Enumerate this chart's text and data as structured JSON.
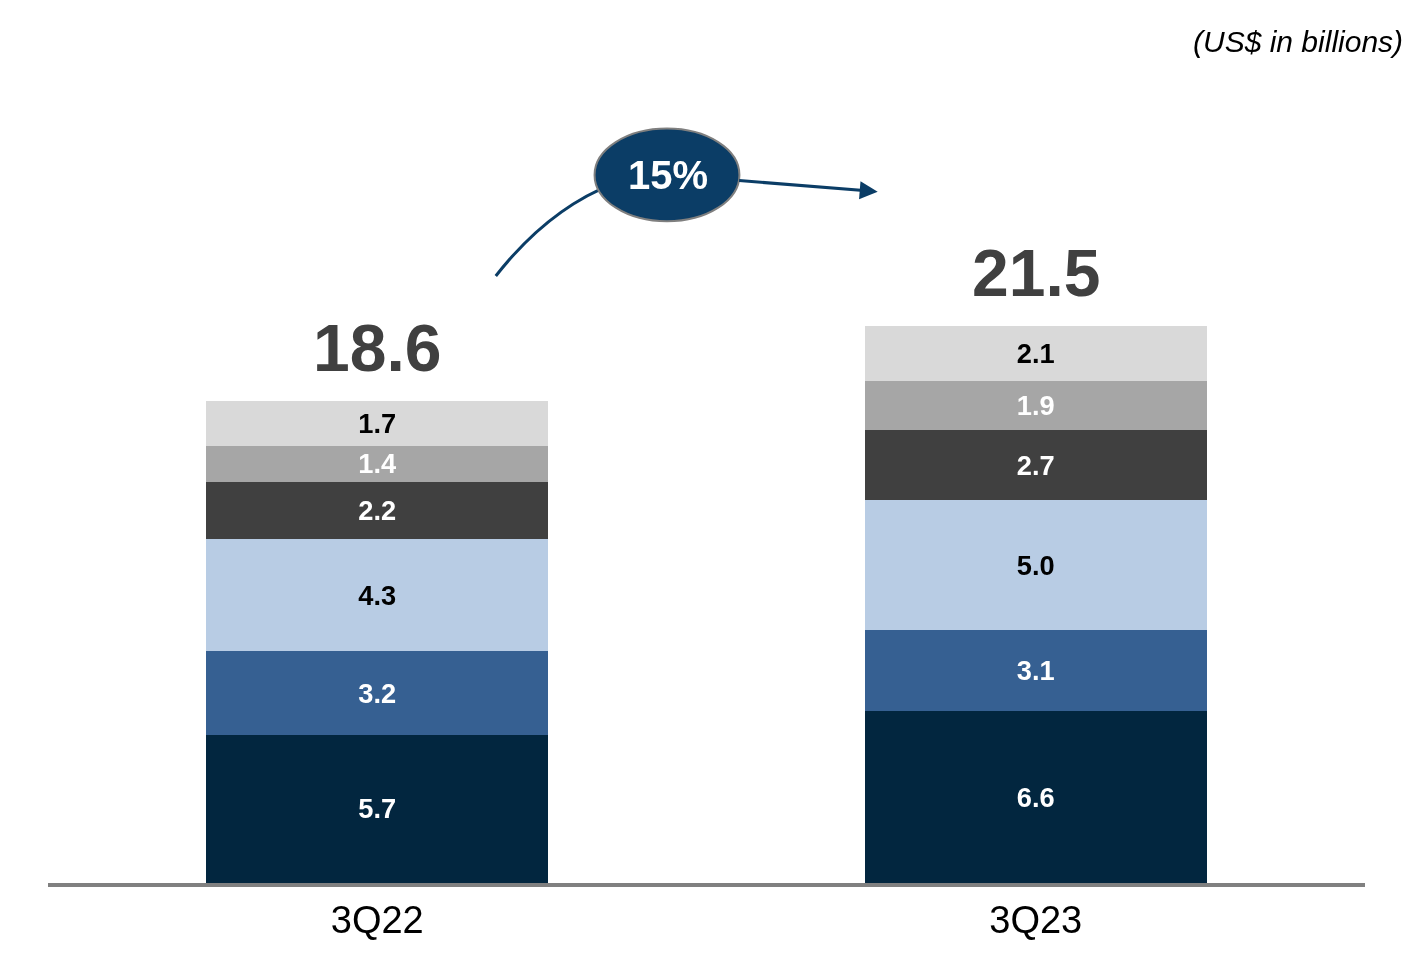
{
  "chart_data": {
    "type": "bar",
    "stacked": true,
    "categories": [
      "3Q22",
      "3Q23"
    ],
    "series": [
      {
        "color": "#02263f",
        "values": [
          5.7,
          6.6
        ],
        "value_labels": [
          "5.7",
          "6.6"
        ]
      },
      {
        "color": "#366092",
        "values": [
          3.2,
          3.1
        ],
        "value_labels": [
          "3.2",
          "3.1"
        ]
      },
      {
        "color": "#b8cce4",
        "values": [
          4.3,
          5.0
        ],
        "value_labels": [
          "4.3",
          "5.0"
        ]
      },
      {
        "color": "#404040",
        "values": [
          2.2,
          2.7
        ],
        "value_labels": [
          "2.2",
          "2.7"
        ]
      },
      {
        "color": "#a6a6a6",
        "values": [
          1.4,
          1.9
        ],
        "value_labels": [
          "1.4",
          "1.9"
        ]
      },
      {
        "color": "#d9d9d9",
        "values": [
          1.7,
          2.1
        ],
        "value_labels": [
          "1.7",
          "2.1"
        ]
      }
    ],
    "totals": [
      "18.6",
      "21.5"
    ],
    "annotations": [
      "(US$ in billions)",
      "15%"
    ],
    "tick_labels": "x"
  }
}
